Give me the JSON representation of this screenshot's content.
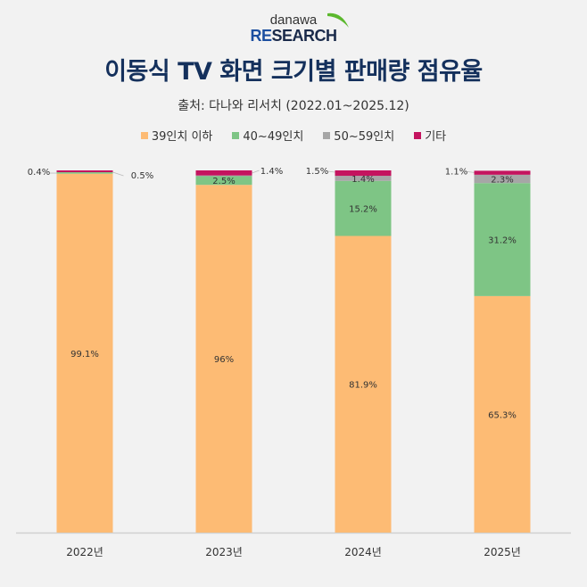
{
  "logo": {
    "top": "danawa",
    "bottom_accent": "RE",
    "bottom_rest": "SEARCH"
  },
  "title": "이동식 TV 화면 크기별 판매량 점유율",
  "subtitle": "출처: 다나와 리서치 (2022.01~2025.12)",
  "colors": {
    "s0": "#fdbb74",
    "s1": "#7ec585",
    "s2": "#a6a6a6",
    "s3": "#c4145f"
  },
  "chart_data": {
    "type": "bar",
    "stacked": true,
    "title": "이동식 TV 화면 크기별 판매량 점유율",
    "subtitle": "출처: 다나와 리서치 (2022.01~2025.12)",
    "xlabel": "",
    "ylabel": "",
    "ylim": [
      0,
      100
    ],
    "grid": false,
    "legend_position": "top",
    "categories": [
      "2022년",
      "2023년",
      "2024년",
      "2025년"
    ],
    "series": [
      {
        "name": "39인치 이하",
        "values": [
          99.1,
          96,
          81.9,
          65.3
        ],
        "labels": [
          "99.1%",
          "96%",
          "81.9%",
          "65.3%"
        ]
      },
      {
        "name": "40~49인치",
        "values": [
          0.4,
          2.5,
          15.2,
          31.2
        ],
        "labels": [
          "0.4%",
          "2.5%",
          "15.2%",
          "31.2%"
        ]
      },
      {
        "name": "50~59인치",
        "values": [
          0.0,
          0.1,
          1.4,
          2.3
        ],
        "labels": [
          "",
          "",
          "1.4%",
          "2.3%"
        ]
      },
      {
        "name": "기타",
        "values": [
          0.5,
          1.4,
          1.5,
          1.1
        ],
        "labels": [
          "0.5%",
          "1.4%",
          "1.5%",
          "1.1%"
        ]
      }
    ]
  }
}
